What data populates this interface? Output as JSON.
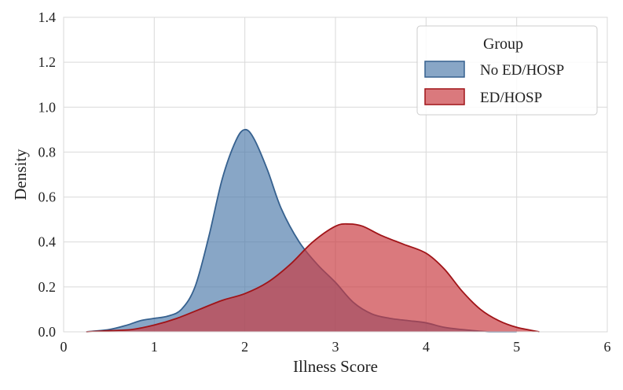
{
  "chart_data": {
    "type": "area",
    "title": "",
    "xlabel": "Illness Score",
    "ylabel": "Density",
    "xlim": [
      0,
      6
    ],
    "ylim": [
      0,
      1.4
    ],
    "xticks": [
      0,
      1,
      2,
      3,
      4,
      5,
      6
    ],
    "yticks": [
      "0.0",
      "0.2",
      "0.4",
      "0.6",
      "0.8",
      "1.0",
      "1.2",
      "1.4"
    ],
    "grid": true,
    "legend": {
      "title": "Group",
      "position": "top-right"
    },
    "series": [
      {
        "name": "No ED/HOSP",
        "fill": "#4f7cab",
        "stroke": "#36618f",
        "x": [
          0.25,
          0.5,
          0.7,
          0.85,
          1.0,
          1.15,
          1.3,
          1.45,
          1.6,
          1.75,
          1.9,
          2.0,
          2.1,
          2.25,
          2.4,
          2.6,
          2.8,
          3.0,
          3.2,
          3.4,
          3.6,
          3.8,
          4.0,
          4.2,
          4.4,
          4.7,
          5.0
        ],
        "y": [
          0.0,
          0.01,
          0.03,
          0.05,
          0.06,
          0.07,
          0.1,
          0.2,
          0.42,
          0.68,
          0.85,
          0.9,
          0.86,
          0.72,
          0.55,
          0.4,
          0.3,
          0.22,
          0.13,
          0.08,
          0.06,
          0.05,
          0.04,
          0.02,
          0.01,
          0.0,
          0.0
        ]
      },
      {
        "name": "ED/HOSP",
        "fill": "#c83a40",
        "stroke": "#a01418",
        "x": [
          0.25,
          0.5,
          0.75,
          1.0,
          1.25,
          1.5,
          1.75,
          2.0,
          2.25,
          2.5,
          2.75,
          3.0,
          3.15,
          3.3,
          3.5,
          3.75,
          4.0,
          4.2,
          4.4,
          4.6,
          4.8,
          5.0,
          5.25
        ],
        "y": [
          0.0,
          0.005,
          0.01,
          0.03,
          0.06,
          0.1,
          0.14,
          0.17,
          0.22,
          0.3,
          0.4,
          0.47,
          0.48,
          0.47,
          0.43,
          0.39,
          0.35,
          0.28,
          0.18,
          0.1,
          0.05,
          0.02,
          0.0
        ]
      }
    ]
  }
}
